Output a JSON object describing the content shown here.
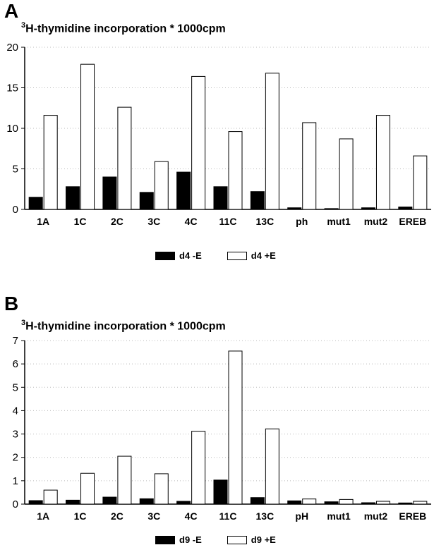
{
  "chart_data": [
    {
      "type": "bar",
      "panel_label": "A",
      "title_sup": "3",
      "title": "H-thymidine incorporation * 1000cpm",
      "categories": [
        "1A",
        "1C",
        "2C",
        "3C",
        "4C",
        "11C",
        "13C",
        "ph",
        "mut1",
        "mut2",
        "EREB"
      ],
      "series": [
        {
          "name": "d4 -E",
          "color": "#000000",
          "values": [
            1.5,
            2.8,
            4.0,
            2.1,
            4.6,
            2.8,
            2.2,
            0.2,
            0.1,
            0.2,
            0.3
          ]
        },
        {
          "name": "d4 +E",
          "color": "#ffffff",
          "values": [
            11.6,
            17.9,
            12.6,
            5.9,
            16.4,
            9.6,
            16.8,
            10.7,
            8.7,
            11.6,
            6.6
          ]
        }
      ],
      "yticks": [
        0,
        5,
        10,
        15,
        20
      ],
      "ylim": [
        0,
        20
      ],
      "grid": true,
      "legend_position": "bottom"
    },
    {
      "type": "bar",
      "panel_label": "B",
      "title_sup": "3",
      "title": "H-thymidine incorporation * 1000cpm",
      "categories": [
        "1A",
        "1C",
        "2C",
        "3C",
        "4C",
        "11C",
        "13C",
        "pH",
        "mut1",
        "mut2",
        "EREB"
      ],
      "series": [
        {
          "name": "d9 -E",
          "color": "#000000",
          "values": [
            0.15,
            0.17,
            0.3,
            0.23,
            0.12,
            1.03,
            0.28,
            0.14,
            0.1,
            0.06,
            0.05
          ]
        },
        {
          "name": "d9 +E",
          "color": "#ffffff",
          "values": [
            0.6,
            1.32,
            2.05,
            1.3,
            3.12,
            6.55,
            3.22,
            0.22,
            0.2,
            0.12,
            0.12
          ]
        }
      ],
      "yticks": [
        0,
        1,
        2,
        3,
        4,
        5,
        6,
        7
      ],
      "ylim": [
        0,
        7
      ],
      "grid": true,
      "legend_position": "bottom"
    }
  ]
}
